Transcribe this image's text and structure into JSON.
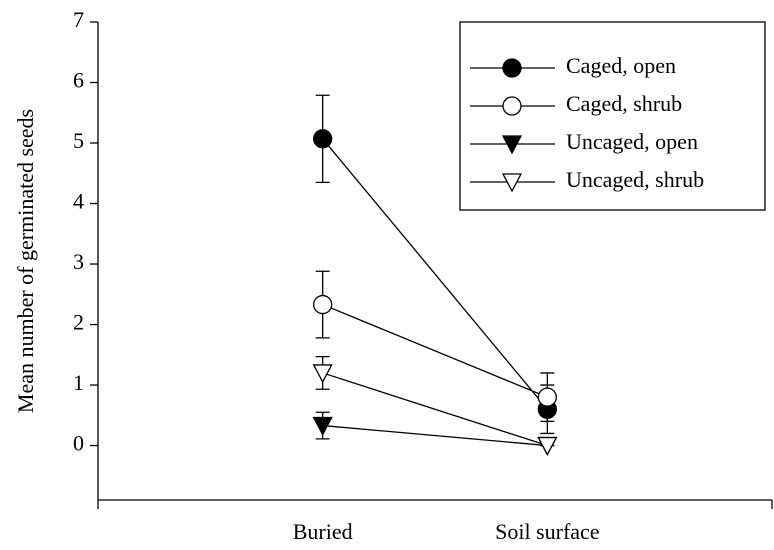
{
  "chart_data": {
    "type": "line",
    "ylabel": "Mean number of germinated seeds",
    "categories": [
      "Buried",
      "Soil surface"
    ],
    "series": [
      {
        "name": "Caged, open",
        "color": "#000000",
        "marker": "circle",
        "fill": "#000000",
        "values": [
          5.07,
          0.6
        ],
        "errors": [
          0.72,
          0.4
        ]
      },
      {
        "name": "Caged, shrub",
        "color": "#000000",
        "marker": "circle",
        "fill": "#ffffff",
        "values": [
          2.33,
          0.8
        ],
        "errors": [
          0.55,
          0.4
        ]
      },
      {
        "name": "Uncaged, open",
        "color": "#000000",
        "marker": "triangle-down",
        "fill": "#000000",
        "values": [
          0.33,
          0
        ],
        "errors": [
          0.22,
          0
        ]
      },
      {
        "name": "Uncaged, shrub",
        "color": "#000000",
        "marker": "triangle-down",
        "fill": "#ffffff",
        "values": [
          1.2,
          0
        ],
        "errors": [
          0.27,
          0
        ]
      }
    ],
    "ylim": [
      -0.9,
      7
    ],
    "yticks": [
      0,
      1,
      2,
      3,
      4,
      5,
      6,
      7
    ],
    "legend": "upper right"
  }
}
